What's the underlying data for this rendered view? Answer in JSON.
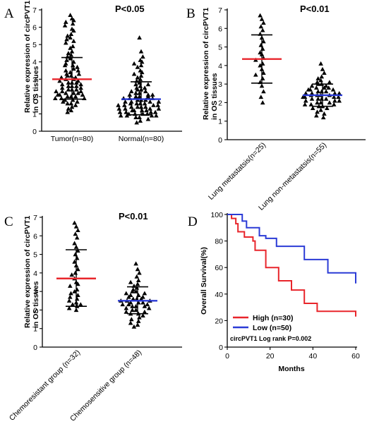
{
  "chart_data": [
    {
      "panel": "A",
      "type": "scatter",
      "title": "P<0.05",
      "ylabel": [
        "Relative expression of circPVT1",
        "in OS tissues"
      ],
      "categories": [
        "Tumor(n=80)",
        "Normal(n=80)"
      ],
      "ylim": [
        0,
        7
      ],
      "yticks": [
        0,
        1,
        2,
        3,
        4,
        5,
        6,
        7
      ],
      "series": [
        {
          "category": "Tumor(n=80)",
          "mean": 3.0,
          "sd_low": 1.85,
          "sd_high": 4.25,
          "mean_color": "#e8252b",
          "points": [
            6.7,
            6.5,
            6.4,
            6.3,
            6.2,
            6.1,
            5.9,
            5.8,
            5.6,
            5.5,
            5.4,
            5.3,
            5.2,
            5.1,
            4.9,
            4.8,
            4.6,
            4.5,
            4.4,
            4.3,
            4.2,
            4.1,
            4.0,
            3.9,
            3.8,
            3.8,
            3.7,
            3.6,
            3.5,
            3.5,
            3.4,
            3.3,
            3.3,
            3.2,
            3.2,
            3.1,
            3.1,
            3.0,
            3.0,
            2.9,
            2.9,
            2.8,
            2.8,
            2.8,
            2.7,
            2.7,
            2.6,
            2.6,
            2.6,
            2.5,
            2.5,
            2.4,
            2.4,
            2.4,
            2.3,
            2.3,
            2.3,
            2.2,
            2.2,
            2.2,
            2.1,
            2.1,
            2.1,
            2.0,
            2.0,
            2.0,
            1.9,
            1.9,
            1.9,
            1.8,
            1.8,
            1.7,
            1.7,
            1.6,
            1.6,
            1.5,
            1.4,
            1.3,
            1.2,
            1.1
          ]
        },
        {
          "category": "Normal(n=80)",
          "mean": 1.85,
          "sd_low": 0.95,
          "sd_high": 2.85,
          "mean_color": "#2b3bd6",
          "points": [
            5.4,
            4.6,
            4.3,
            4.1,
            4.0,
            3.9,
            3.8,
            3.7,
            3.5,
            3.4,
            3.3,
            3.2,
            3.1,
            3.0,
            2.9,
            2.8,
            2.7,
            2.7,
            2.6,
            2.5,
            2.5,
            2.4,
            2.4,
            2.3,
            2.3,
            2.2,
            2.2,
            2.1,
            2.1,
            2.1,
            2.0,
            2.0,
            2.0,
            1.9,
            1.9,
            1.9,
            1.8,
            1.8,
            1.8,
            1.7,
            1.7,
            1.7,
            1.7,
            1.6,
            1.6,
            1.6,
            1.6,
            1.5,
            1.5,
            1.5,
            1.5,
            1.4,
            1.4,
            1.4,
            1.4,
            1.3,
            1.3,
            1.3,
            1.3,
            1.2,
            1.2,
            1.2,
            1.2,
            1.1,
            1.1,
            1.1,
            1.1,
            1.0,
            1.0,
            1.0,
            1.0,
            0.9,
            0.9,
            0.9,
            0.9,
            0.8,
            0.8,
            0.7,
            0.6,
            0.5
          ]
        }
      ]
    },
    {
      "panel": "B",
      "type": "scatter",
      "title": "P<0.01",
      "ylabel": [
        "Relative expression of circPVT1",
        "in OS tissues"
      ],
      "categories": [
        "Lung metastatsis(n=25)",
        "Lung non-metastatsis(n=55)"
      ],
      "ylim": [
        0,
        7
      ],
      "yticks": [
        0,
        1,
        2,
        3,
        4,
        5,
        6,
        7
      ],
      "series": [
        {
          "category": "Lung metastatsis(n=25)",
          "mean": 4.35,
          "sd_low": 3.05,
          "sd_high": 5.65,
          "mean_color": "#e8252b",
          "points": [
            6.7,
            6.5,
            6.3,
            6.1,
            5.9,
            5.7,
            5.5,
            5.3,
            5.1,
            4.9,
            4.7,
            4.6,
            4.4,
            4.3,
            4.1,
            4.0,
            3.8,
            3.6,
            3.5,
            3.3,
            3.1,
            2.9,
            2.6,
            2.3,
            2.0
          ]
        },
        {
          "category": "Lung non-metastatsis(n=55)",
          "mean": 2.4,
          "sd_low": 1.8,
          "sd_high": 3.0,
          "mean_color": "#2b3bd6",
          "points": [
            4.1,
            3.8,
            3.6,
            3.4,
            3.3,
            3.2,
            3.1,
            3.1,
            3.0,
            3.0,
            2.9,
            2.9,
            2.8,
            2.8,
            2.8,
            2.7,
            2.7,
            2.7,
            2.6,
            2.6,
            2.6,
            2.5,
            2.5,
            2.5,
            2.5,
            2.4,
            2.4,
            2.4,
            2.4,
            2.3,
            2.3,
            2.3,
            2.3,
            2.2,
            2.2,
            2.2,
            2.2,
            2.1,
            2.1,
            2.1,
            2.0,
            2.0,
            2.0,
            1.9,
            1.9,
            1.9,
            1.8,
            1.8,
            1.7,
            1.7,
            1.6,
            1.5,
            1.4,
            1.3,
            1.2
          ]
        }
      ]
    },
    {
      "panel": "C",
      "type": "scatter",
      "title": "P<0.01",
      "ylabel": [
        "Relative expression of circPVT1",
        "in OS tissues"
      ],
      "categories": [
        "Chemoresistant group (n=32)",
        "Chemosensitive group (n=48)"
      ],
      "ylim": [
        0,
        7
      ],
      "yticks": [
        0,
        1,
        2,
        3,
        4,
        5,
        6,
        7
      ],
      "series": [
        {
          "category": "Chemoresistant group (n=32)",
          "mean": 3.7,
          "sd_low": 2.2,
          "sd_high": 5.25,
          "mean_color": "#e8252b",
          "points": [
            6.7,
            6.5,
            6.3,
            6.1,
            5.9,
            5.6,
            5.4,
            5.2,
            5.0,
            4.8,
            4.6,
            4.4,
            4.2,
            4.0,
            3.9,
            3.7,
            3.5,
            3.4,
            3.3,
            3.1,
            3.0,
            2.9,
            2.8,
            2.7,
            2.6,
            2.5,
            2.4,
            2.3,
            2.3,
            2.2,
            2.1,
            2.0
          ]
        },
        {
          "category": "Chemosensitive group (n=48)",
          "mean": 2.5,
          "sd_low": 1.8,
          "sd_high": 3.25,
          "mean_color": "#2b3bd6",
          "points": [
            4.5,
            4.2,
            4.0,
            3.8,
            3.6,
            3.5,
            3.4,
            3.3,
            3.2,
            3.1,
            3.0,
            3.0,
            2.9,
            2.9,
            2.8,
            2.8,
            2.7,
            2.7,
            2.6,
            2.6,
            2.6,
            2.5,
            2.5,
            2.5,
            2.4,
            2.4,
            2.4,
            2.3,
            2.3,
            2.3,
            2.2,
            2.2,
            2.2,
            2.1,
            2.1,
            2.0,
            2.0,
            1.9,
            1.9,
            1.8,
            1.8,
            1.7,
            1.6,
            1.5,
            1.4,
            1.3,
            1.2,
            1.1
          ]
        }
      ]
    },
    {
      "panel": "D",
      "type": "line",
      "title": "",
      "xlabel": "Months",
      "ylabel": "Overall Survival(%)",
      "xlim": [
        0,
        60
      ],
      "ylim": [
        0,
        100
      ],
      "xticks": [
        0,
        20,
        40,
        60
      ],
      "yticks": [
        0,
        20,
        40,
        60,
        80,
        100
      ],
      "annotation": "circPVT1 Log rank P=0.002",
      "legend_position": "bottom-left",
      "series": [
        {
          "name": "High (n=30)",
          "color": "#e8252b",
          "steps": [
            [
              0,
              100
            ],
            [
              2,
              97
            ],
            [
              4,
              93
            ],
            [
              5,
              87
            ],
            [
              8,
              83
            ],
            [
              12,
              80
            ],
            [
              13,
              73
            ],
            [
              18,
              60
            ],
            [
              24,
              50
            ],
            [
              30,
              43
            ],
            [
              36,
              33
            ],
            [
              42,
              27
            ],
            [
              60,
              23
            ]
          ]
        },
        {
          "name": "Low (n=50)",
          "color": "#2b3bd6",
          "steps": [
            [
              0,
              100
            ],
            [
              7,
              95
            ],
            [
              9,
              90
            ],
            [
              15,
              84
            ],
            [
              18,
              82
            ],
            [
              23,
              76
            ],
            [
              36,
              66
            ],
            [
              47,
              56
            ],
            [
              60,
              48
            ]
          ]
        }
      ]
    }
  ]
}
